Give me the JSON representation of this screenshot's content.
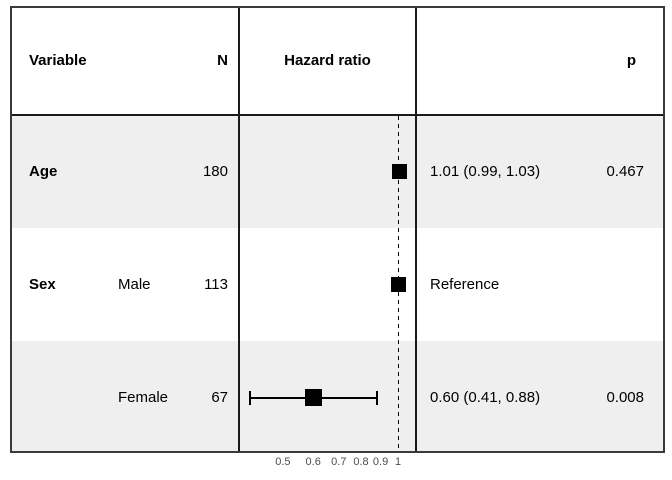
{
  "header": {
    "variable": "Variable",
    "n": "N",
    "hazard_ratio": "Hazard ratio",
    "p": "p"
  },
  "chart_data": {
    "type": "forest",
    "title": "Hazard ratio",
    "x_axis": {
      "scale": "log",
      "ticks": [
        0.5,
        0.6,
        0.7,
        0.8,
        0.9,
        1
      ],
      "tick_labels": [
        "0.5",
        "0.6",
        "0.7",
        "0.8",
        "0.9",
        "1"
      ],
      "xlim": [
        0.384,
        1.107
      ],
      "reference_line": 1
    },
    "rows": [
      {
        "variable": "Age",
        "level": "",
        "n": "180",
        "hr": 1.01,
        "ci_low": 0.99,
        "ci_high": 1.03,
        "estimate_label": "1.01 (0.99, 1.03)",
        "p": "0.467",
        "marker_size": 15
      },
      {
        "variable": "Sex",
        "level": "Male",
        "n": "113",
        "hr": 1.0,
        "ci_low": null,
        "ci_high": null,
        "estimate_label": "Reference",
        "p": "",
        "marker_size": 15
      },
      {
        "variable": "",
        "level": "Female",
        "n": "67",
        "hr": 0.6,
        "ci_low": 0.41,
        "ci_high": 0.88,
        "estimate_label": "0.60 (0.41, 0.88)",
        "p": "0.008",
        "marker_size": 17
      }
    ]
  },
  "colors": {
    "background": "#ffffff",
    "stripe": "#efefef",
    "border": "#3a3a3a",
    "grid_line": "#1a1a1a",
    "marker": "#000000",
    "text": "#000000",
    "tick_label": "#4d4d4d"
  }
}
